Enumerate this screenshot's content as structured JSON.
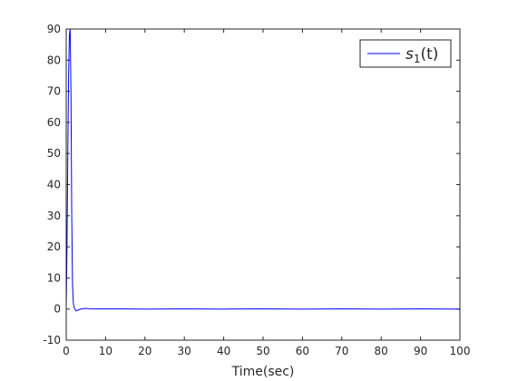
{
  "chart_data": {
    "type": "line",
    "title": "",
    "xlabel": "Time(sec)",
    "ylabel": "",
    "xlim": [
      0,
      100
    ],
    "ylim": [
      -10,
      90
    ],
    "xticks": [
      0,
      10,
      20,
      30,
      40,
      50,
      60,
      70,
      80,
      90,
      100
    ],
    "yticks": [
      -10,
      0,
      10,
      20,
      30,
      40,
      50,
      60,
      70,
      80,
      90
    ],
    "grid": false,
    "legend_position": "top-right",
    "series_color": "#0000ff",
    "series": [
      {
        "name": "s1(t)",
        "x": [
          0,
          0.2,
          0.4,
          0.6,
          0.8,
          1.0,
          1.2,
          1.4,
          1.6,
          1.8,
          2.0,
          2.5,
          3.0,
          4.0,
          5.0,
          6.0,
          8.0,
          10.0,
          15.0,
          20.0,
          30.0,
          40.0,
          50.0,
          60.0,
          70.0,
          80.0,
          90.0,
          100.0
        ],
        "y": [
          0,
          20,
          50,
          75,
          88,
          90,
          70,
          30,
          8,
          2,
          0.5,
          -0.6,
          -0.3,
          0.1,
          0.2,
          0.1,
          0.05,
          0.05,
          0.05,
          0.0,
          0.05,
          0.0,
          0.05,
          0.0,
          0.05,
          0.0,
          0.05,
          0.0
        ]
      }
    ]
  }
}
